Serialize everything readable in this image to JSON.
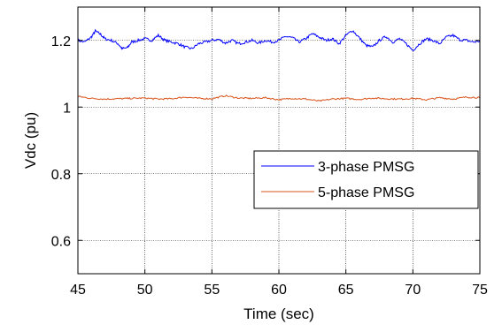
{
  "chart_data": {
    "type": "line",
    "title": "",
    "xlabel": "Time (sec)",
    "ylabel": "Vdc (pu)",
    "xlim": [
      45,
      75
    ],
    "ylim": [
      0.5,
      1.3
    ],
    "xticks": [
      45,
      50,
      55,
      60,
      65,
      70,
      75
    ],
    "yticks": [
      0.6,
      0.8,
      1,
      1.2
    ],
    "grid": true,
    "legend_position": "center-right",
    "series": [
      {
        "name": "3-phase PMSG",
        "color": "#0000ff",
        "x": [
          45.0,
          45.5,
          46.0,
          46.3,
          46.7,
          47.0,
          47.5,
          48.0,
          48.3,
          48.7,
          49.0,
          49.5,
          50.0,
          50.5,
          51.0,
          51.5,
          52.0,
          52.5,
          53.0,
          53.5,
          54.0,
          54.5,
          55.0,
          55.5,
          56.0,
          56.5,
          57.0,
          57.5,
          58.0,
          58.5,
          59.0,
          59.5,
          60.0,
          60.5,
          61.0,
          61.5,
          62.0,
          62.5,
          63.0,
          63.5,
          64.0,
          64.5,
          65.0,
          65.5,
          66.0,
          66.5,
          67.0,
          67.5,
          68.0,
          68.5,
          69.0,
          69.5,
          70.0,
          70.5,
          71.0,
          71.5,
          72.0,
          72.5,
          73.0,
          73.5,
          74.0,
          74.5,
          75.0
        ],
        "y": [
          1.2,
          1.195,
          1.21,
          1.228,
          1.218,
          1.205,
          1.2,
          1.19,
          1.175,
          1.178,
          1.195,
          1.2,
          1.205,
          1.2,
          1.215,
          1.2,
          1.195,
          1.19,
          1.18,
          1.175,
          1.19,
          1.195,
          1.2,
          1.203,
          1.192,
          1.2,
          1.19,
          1.195,
          1.2,
          1.192,
          1.2,
          1.195,
          1.2,
          1.212,
          1.208,
          1.195,
          1.205,
          1.22,
          1.21,
          1.2,
          1.205,
          1.19,
          1.215,
          1.23,
          1.208,
          1.185,
          1.18,
          1.2,
          1.212,
          1.195,
          1.205,
          1.19,
          1.17,
          1.19,
          1.205,
          1.2,
          1.19,
          1.21,
          1.215,
          1.202,
          1.2,
          1.195,
          1.198
        ]
      },
      {
        "name": "5-phase PMSG",
        "color": "#d95319",
        "x": [
          45.0,
          46.0,
          47.0,
          48.0,
          49.0,
          50.0,
          51.0,
          52.0,
          53.0,
          54.0,
          55.0,
          56.0,
          57.0,
          58.0,
          59.0,
          60.0,
          61.0,
          62.0,
          63.0,
          64.0,
          65.0,
          66.0,
          67.0,
          68.0,
          69.0,
          70.0,
          71.0,
          72.0,
          73.0,
          74.0,
          75.0
        ],
        "y": [
          1.032,
          1.026,
          1.024,
          1.025,
          1.026,
          1.027,
          1.024,
          1.025,
          1.03,
          1.026,
          1.025,
          1.034,
          1.027,
          1.026,
          1.028,
          1.022,
          1.026,
          1.024,
          1.018,
          1.024,
          1.026,
          1.023,
          1.027,
          1.025,
          1.024,
          1.026,
          1.022,
          1.028,
          1.024,
          1.03,
          1.028
        ]
      }
    ]
  }
}
